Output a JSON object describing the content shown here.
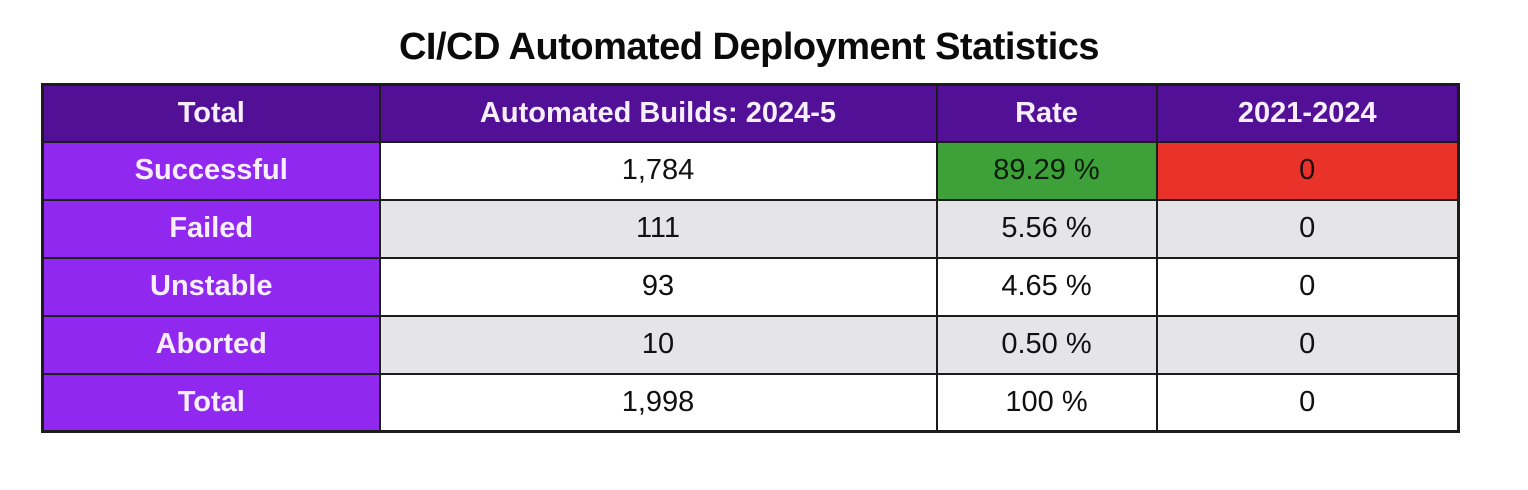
{
  "title": "CI/CD Automated Deployment Statistics",
  "colors": {
    "header_bg": "#511096",
    "label_bg": "#9128f0",
    "header_text": "#f7eefe",
    "green_highlight": "#3da039",
    "red_highlight": "#e9332a",
    "row_alt_bg": "#e5e5e7",
    "row_bg": "#ffffff",
    "border": "#1c1c1c"
  },
  "table": {
    "columns": [
      "Total",
      "Automated Builds: 2024-5",
      "Rate",
      "2021-2024"
    ],
    "rows": [
      {
        "label": "Successful",
        "builds": "1,784",
        "rate": "89.29 %",
        "prev": "0",
        "zebra": "white",
        "rate_highlight": "green",
        "prev_highlight": "red"
      },
      {
        "label": "Failed",
        "builds": "111",
        "rate": "5.56 %",
        "prev": "0",
        "zebra": "gray"
      },
      {
        "label": "Unstable",
        "builds": "93",
        "rate": "4.65 %",
        "prev": "0",
        "zebra": "white"
      },
      {
        "label": "Aborted",
        "builds": "10",
        "rate": "0.50 %",
        "prev": "0",
        "zebra": "gray"
      },
      {
        "label": "Total",
        "builds": "1,998",
        "rate": "100 %",
        "prev": "0",
        "zebra": "white"
      }
    ]
  },
  "chart_data": {
    "type": "table",
    "title": "CI/CD Automated Deployment Statistics",
    "columns": [
      "Total",
      "Automated Builds: 2024-5",
      "Rate",
      "2021-2024"
    ],
    "rows": [
      [
        "Successful",
        1784,
        "89.29 %",
        0
      ],
      [
        "Failed",
        111,
        "5.56 %",
        0
      ],
      [
        "Unstable",
        93,
        "4.65 %",
        0
      ],
      [
        "Aborted",
        10,
        "0.50 %",
        0
      ],
      [
        "Total",
        1998,
        "100 %",
        0
      ]
    ],
    "notes": "Successful rate cell highlighted green; Successful 2021-2024 cell highlighted red"
  }
}
